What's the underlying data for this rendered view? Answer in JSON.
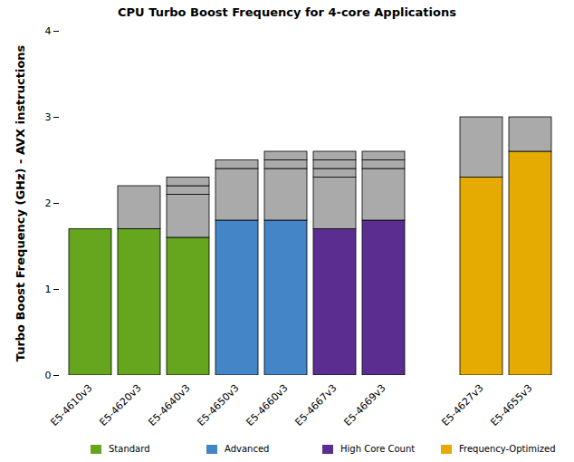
{
  "chart_data": {
    "type": "bar",
    "title": "CPU Turbo Boost Frequency for 4-core Applications",
    "y_label": "Turbo Boost Frequency (GHz) - AVX instructions",
    "categories": [
      "E5-4610v3",
      "E5-4620v3",
      "E5-4640v3",
      "E5-4650v3",
      "E5-4660v3",
      "E5-4667v3",
      "E5-4669v3",
      null,
      "E5-4627v3",
      "E5-4655v3"
    ],
    "stacked": true,
    "series": [
      {
        "name": "Standard",
        "color": "#66a61e",
        "values": [
          1.7,
          1.7,
          1.6,
          null,
          null,
          null,
          null,
          null,
          null,
          null
        ]
      },
      {
        "name": "Advanced",
        "color": "#4385c6",
        "values": [
          null,
          null,
          null,
          1.8,
          1.8,
          null,
          null,
          null,
          null,
          null
        ]
      },
      {
        "name": "High Core Count",
        "color": "#5c2d91",
        "values": [
          null,
          null,
          null,
          null,
          null,
          1.7,
          1.8,
          null,
          null,
          null
        ]
      },
      {
        "name": "Frequency-Optimized",
        "color": "#e6ab02",
        "values": [
          null,
          null,
          null,
          null,
          null,
          null,
          null,
          null,
          2.3,
          2.6
        ]
      },
      {
        "color": "#aaaaaa",
        "values": [
          null,
          0.5,
          0.5,
          0.6,
          0.6,
          0.6,
          0.6,
          null,
          0.7,
          0.4
        ]
      },
      {
        "color": "#aaaaaa",
        "values": [
          null,
          null,
          0.1,
          0.1,
          0.1,
          0.1,
          0.1,
          null,
          null,
          null
        ]
      },
      {
        "color": "#aaaaaa",
        "values": [
          null,
          null,
          0.1,
          null,
          0.1,
          0.1,
          0.1,
          null,
          null,
          null
        ]
      },
      {
        "color": "#aaaaaa",
        "values": [
          null,
          null,
          null,
          null,
          null,
          0.1,
          null,
          null,
          null,
          null
        ]
      }
    ],
    "ylim": [
      0,
      4
    ],
    "yticks": [
      0,
      1,
      2,
      3,
      4
    ],
    "grid": false,
    "legend": "bottom"
  }
}
